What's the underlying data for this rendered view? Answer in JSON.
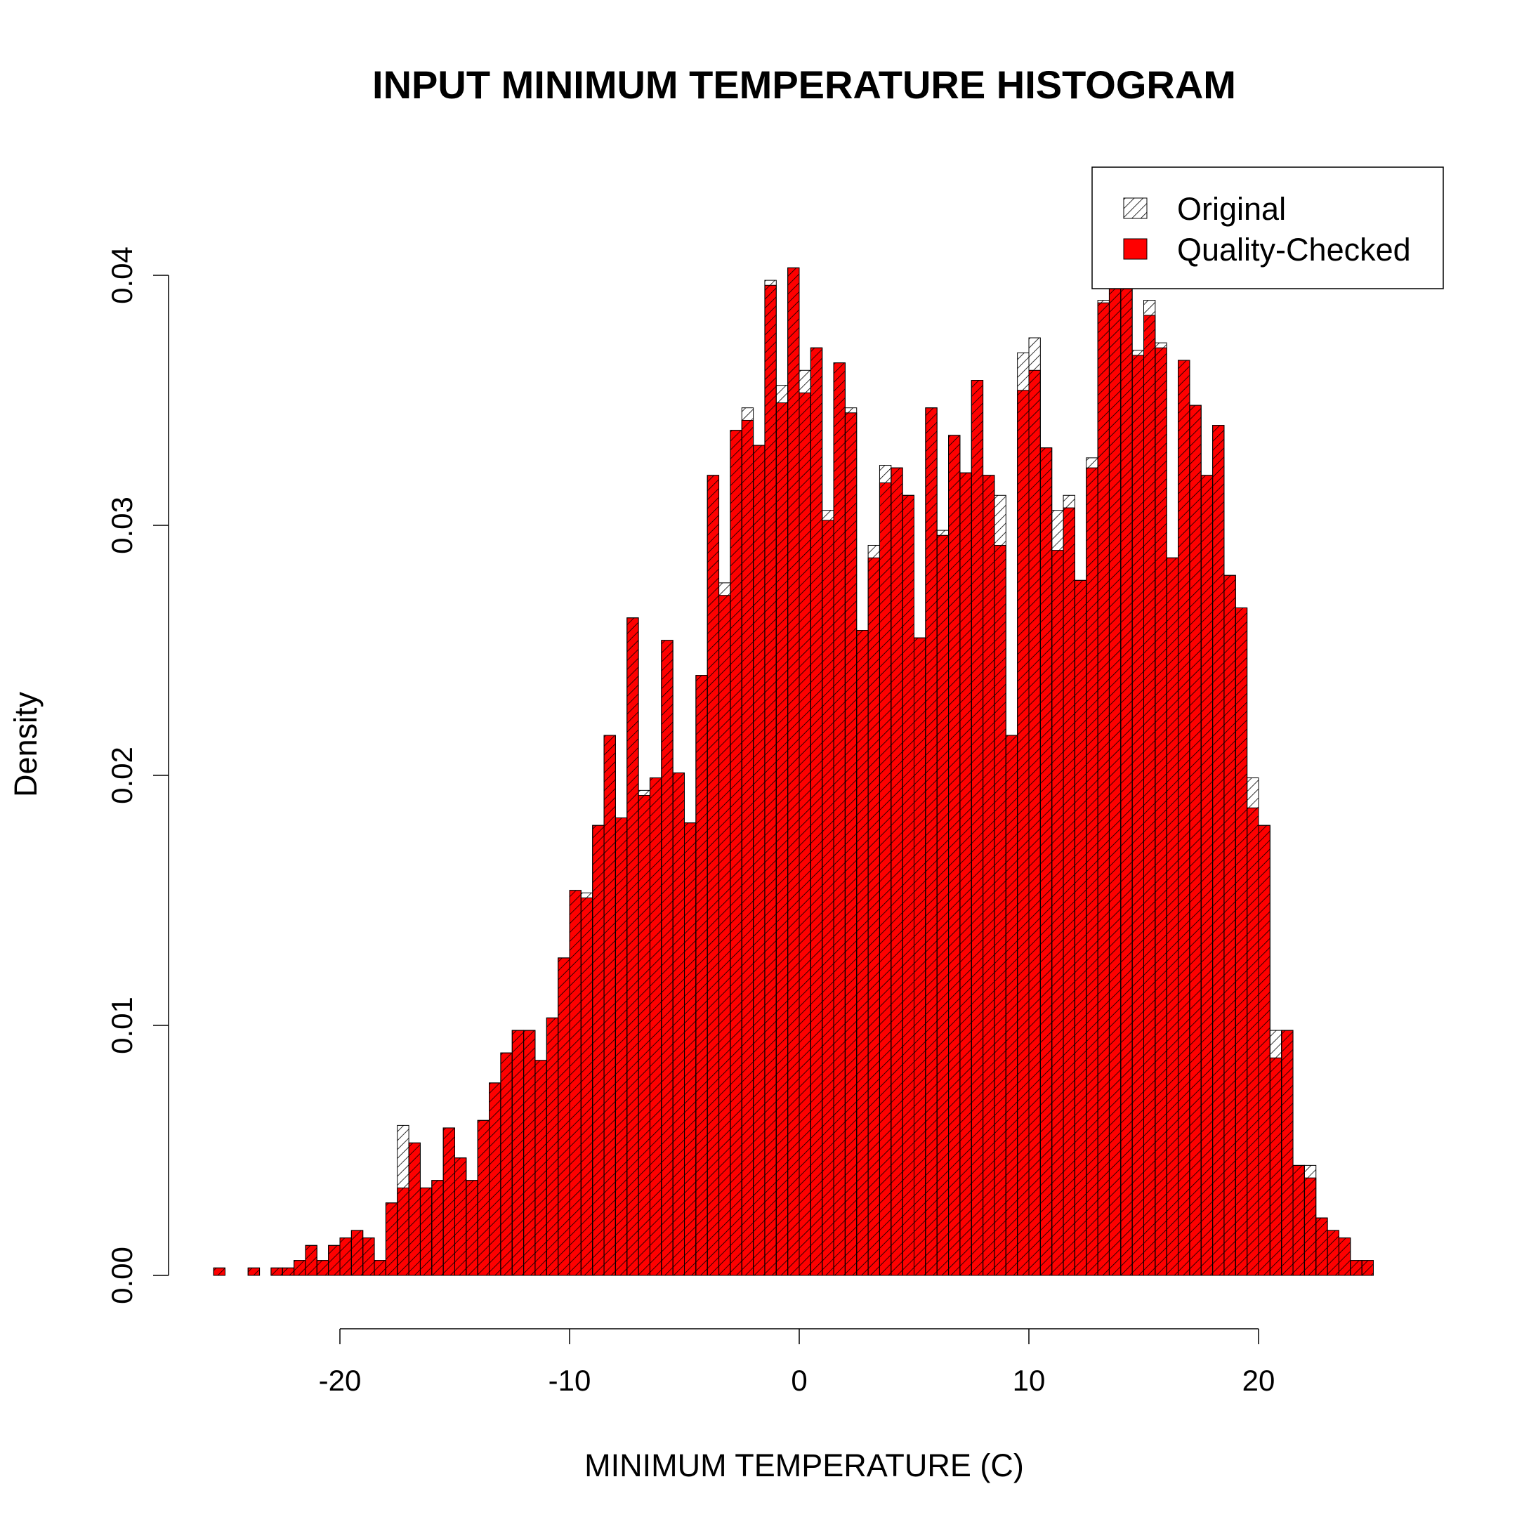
{
  "chart_data": {
    "type": "bar",
    "title": "INPUT MINIMUM TEMPERATURE HISTOGRAM",
    "xlabel": "MINIMUM TEMPERATURE (C)",
    "ylabel": "Density",
    "xlim": [
      -25.5,
      26
    ],
    "ylim": [
      0,
      0.04
    ],
    "x_ticks": [
      -20,
      -10,
      0,
      10,
      20
    ],
    "y_ticks": [
      0.0,
      0.01,
      0.02,
      0.03,
      0.04
    ],
    "x_tick_labels": [
      "-20",
      "-10",
      "0",
      "10",
      "20"
    ],
    "y_tick_labels": [
      "0.00",
      "0.01",
      "0.02",
      "0.03",
      "0.04"
    ],
    "bin_start": -25.5,
    "bin_width": 0.5,
    "series": [
      {
        "name": "Original",
        "fill": "hatched",
        "values": [
          0.0003,
          0,
          0,
          0.0003,
          0,
          0.0003,
          0.0003,
          0.0006,
          0.0012,
          0.0006,
          0.0012,
          0.0015,
          0.0018,
          0.0015,
          0.0006,
          0.0029,
          0.006,
          0.0053,
          0.0035,
          0.0038,
          0.0059,
          0.0047,
          0.0038,
          0.0062,
          0.0077,
          0.0089,
          0.0098,
          0.0098,
          0.0086,
          0.0103,
          0.0127,
          0.0154,
          0.0153,
          0.018,
          0.0216,
          0.0183,
          0.0263,
          0.0194,
          0.0199,
          0.0254,
          0.0201,
          0.0181,
          0.024,
          0.032,
          0.0277,
          0.0338,
          0.0347,
          0.0332,
          0.0398,
          0.0356,
          0.0403,
          0.0362,
          0.0371,
          0.0306,
          0.0365,
          0.0347,
          0.0258,
          0.0292,
          0.0324,
          0.0323,
          0.0312,
          0.0255,
          0.0347,
          0.0298,
          0.0336,
          0.0321,
          0.0358,
          0.032,
          0.0312,
          0.0216,
          0.0369,
          0.0375,
          0.0331,
          0.0306,
          0.0312,
          0.0278,
          0.0327,
          0.039,
          0.0395,
          0.0398,
          0.037,
          0.039,
          0.0373,
          0.0287,
          0.0366,
          0.0348,
          0.032,
          0.034,
          0.028,
          0.0267,
          0.0199,
          0.018,
          0.0098,
          0.0098,
          0.0044,
          0.0044,
          0.0023,
          0.0018,
          0.0015,
          0.0006,
          0.0006
        ],
        "color": "#000000"
      },
      {
        "name": "Quality-Checked",
        "fill": "solid",
        "values": [
          0.0003,
          0,
          0,
          0.0003,
          0,
          0.0003,
          0.0003,
          0.0006,
          0.0012,
          0.0006,
          0.0012,
          0.0015,
          0.0018,
          0.0015,
          0.0006,
          0.0029,
          0.0035,
          0.0053,
          0.0035,
          0.0038,
          0.0059,
          0.0047,
          0.0038,
          0.0062,
          0.0077,
          0.0089,
          0.0098,
          0.0098,
          0.0086,
          0.0103,
          0.0127,
          0.0154,
          0.0151,
          0.018,
          0.0216,
          0.0183,
          0.0263,
          0.0192,
          0.0199,
          0.0254,
          0.0201,
          0.0181,
          0.024,
          0.032,
          0.0272,
          0.0338,
          0.0342,
          0.0332,
          0.0396,
          0.0349,
          0.0403,
          0.0353,
          0.0371,
          0.0302,
          0.0365,
          0.0345,
          0.0258,
          0.0287,
          0.0317,
          0.0323,
          0.0312,
          0.0255,
          0.0347,
          0.0296,
          0.0336,
          0.0321,
          0.0358,
          0.032,
          0.0292,
          0.0216,
          0.0354,
          0.0362,
          0.0331,
          0.029,
          0.0307,
          0.0278,
          0.0323,
          0.0389,
          0.0395,
          0.0398,
          0.0368,
          0.0384,
          0.0371,
          0.0287,
          0.0366,
          0.0348,
          0.032,
          0.034,
          0.028,
          0.0267,
          0.0187,
          0.018,
          0.0087,
          0.0098,
          0.0044,
          0.0039,
          0.0023,
          0.0018,
          0.0015,
          0.0006,
          0.0006
        ],
        "color": "#ff0000"
      }
    ],
    "legend": {
      "position": "top-right",
      "entries": [
        "Original",
        "Quality-Checked"
      ]
    },
    "grid": false
  }
}
